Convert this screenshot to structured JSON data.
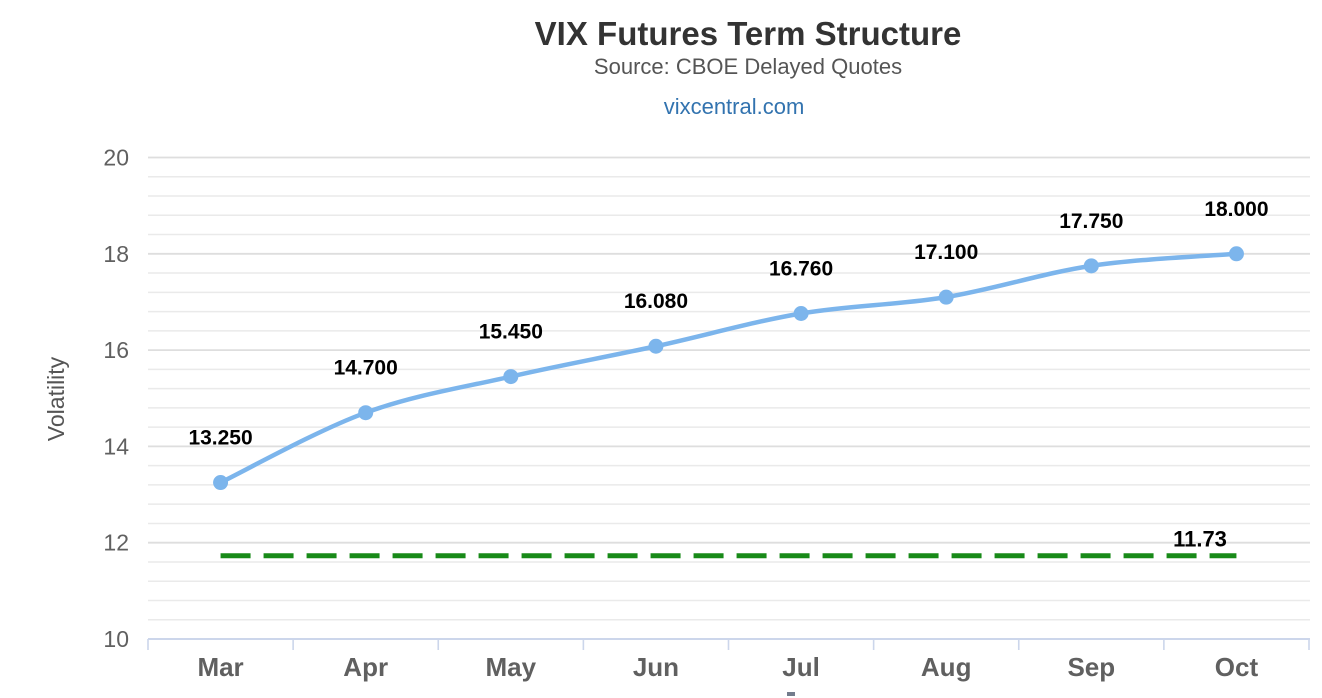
{
  "header": {
    "title": "VIX Futures Term Structure",
    "subtitle": "Source: CBOE Delayed Quotes",
    "link": "vixcentral.com"
  },
  "colors": {
    "title": "#333333",
    "subtitle": "#555555",
    "link": "#3273af",
    "axis_label": "#606060",
    "axis_title": "#555555",
    "grid_major": "#dedede",
    "grid_minor": "#eaeaea",
    "axis_line": "#ccd6eb",
    "series_line": "#7cb5ec",
    "annotation_line": "#188a18",
    "data_label": "#000000"
  },
  "chart_data": {
    "type": "line",
    "title": "VIX Futures Term Structure",
    "subtitle": "Source: CBOE Delayed Quotes",
    "categories": [
      "Mar",
      "Apr",
      "May",
      "Jun",
      "Jul",
      "Aug",
      "Sep",
      "Oct"
    ],
    "series": [
      {
        "shape": "spline",
        "color": "#7cb5ec",
        "marker": "circle",
        "values": [
          13.25,
          14.7,
          15.45,
          16.08,
          16.76,
          17.1,
          17.75,
          18.0
        ],
        "point_labels": [
          "13.250",
          "14.700",
          "15.450",
          "16.080",
          "16.760",
          "17.100",
          "17.750",
          "18.000"
        ]
      }
    ],
    "annotation": {
      "type": "dashed-horizontal-line",
      "value": 11.73,
      "label": "11.73",
      "color": "#188a18"
    },
    "xlabel": "",
    "ylabel": "Volatility",
    "ylim": [
      10,
      20
    ],
    "yticks": [
      10,
      12,
      14,
      16,
      18,
      20
    ],
    "minor_tick_interval": 0.4,
    "grid": "horizontal",
    "legend": "none"
  }
}
